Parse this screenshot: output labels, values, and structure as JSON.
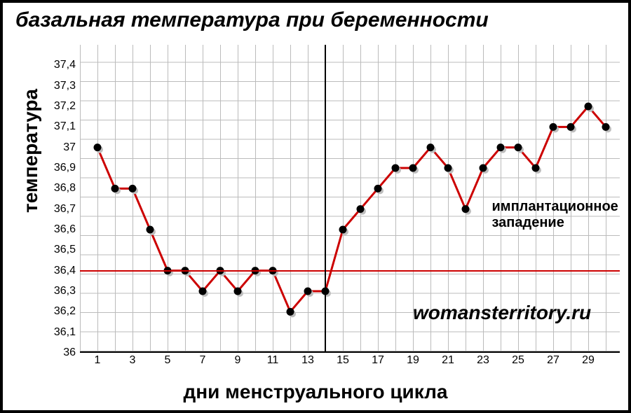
{
  "title": "базальная температура при беременности",
  "ylabel": "температура",
  "xlabel": "дни менструального цикла",
  "annotation": {
    "text": "имплантационное\nзападение",
    "at_day": 23.5,
    "at_temp": 36.75
  },
  "watermark": {
    "text": "womansterritory.ru",
    "at_day": 19,
    "at_temp": 36.25
  },
  "chart": {
    "type": "line",
    "x": {
      "min": 1,
      "max": 30,
      "tick_step": 1,
      "labels": [
        1,
        3,
        5,
        7,
        9,
        11,
        13,
        15,
        17,
        19,
        21,
        23,
        25,
        27,
        29
      ],
      "fontsize": 16
    },
    "y": {
      "min": 36.0,
      "max": 37.5,
      "tick_step": 0.1,
      "ticks": [
        36.0,
        36.1,
        36.2,
        36.3,
        36.4,
        36.5,
        36.6,
        36.7,
        36.8,
        36.9,
        37.0,
        37.1,
        37.2,
        37.3,
        37.4
      ],
      "labels": [
        "36",
        "36,1",
        "36,2",
        "36,3",
        "36,4",
        "36,5",
        "36,6",
        "36,7",
        "36,8",
        "36,9",
        "37",
        "37,1",
        "37,2",
        "37,3",
        "37,4"
      ],
      "fontsize": 16
    },
    "hline_at": 36.4,
    "vline_at_day": 14,
    "grid_color": "#bbbbbb",
    "background_color": "#ffffff",
    "series": {
      "line_color": "#cc0000",
      "line_width": 3,
      "marker_fill": "#000000",
      "marker_stroke": "#000000",
      "marker_radius": 5,
      "shadow_fill": "#bdbdbd",
      "shadow_offset_x": 3,
      "shadow_offset_y": 3,
      "days": [
        1,
        2,
        3,
        4,
        5,
        6,
        7,
        8,
        9,
        10,
        11,
        12,
        13,
        14,
        15,
        16,
        17,
        18,
        19,
        20,
        21,
        22,
        23,
        24,
        25,
        26,
        27,
        28,
        29,
        30
      ],
      "temps": [
        37.0,
        36.8,
        36.8,
        36.6,
        36.4,
        36.4,
        36.3,
        36.4,
        36.3,
        36.4,
        36.4,
        36.2,
        36.3,
        36.3,
        36.6,
        36.7,
        36.8,
        36.9,
        36.9,
        37.0,
        36.9,
        36.7,
        36.9,
        37.0,
        37.0,
        36.9,
        37.1,
        37.1,
        37.2,
        37.1
      ]
    },
    "title_fontsize": 30,
    "axis_label_fontsize": 28
  }
}
